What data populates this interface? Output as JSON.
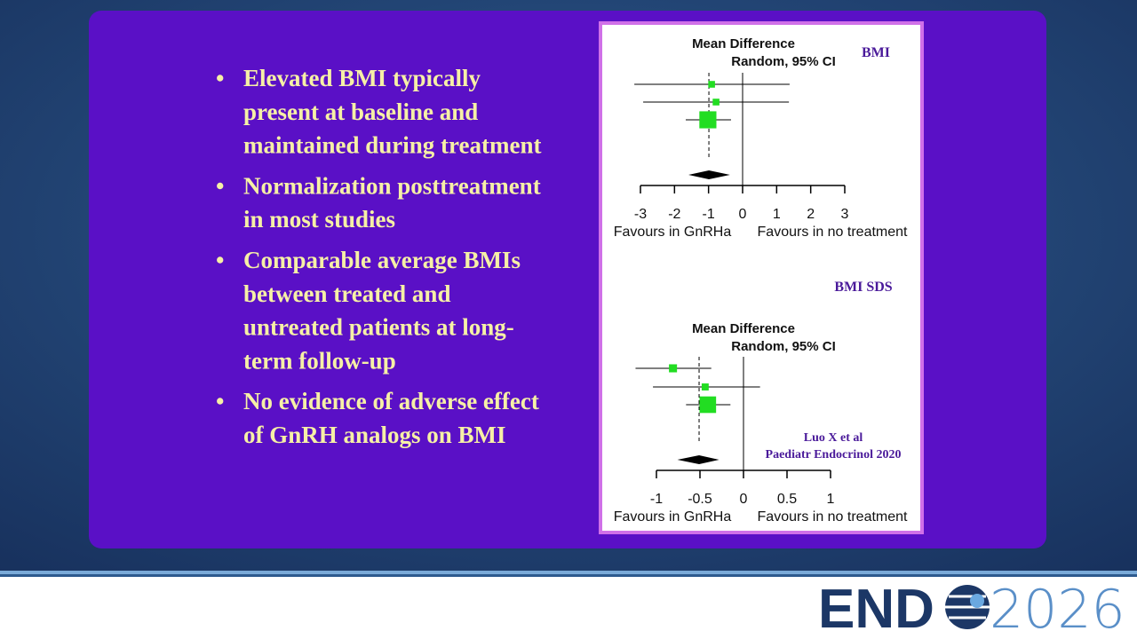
{
  "slide": {
    "bullets": [
      [
        "Elevated BMI typically",
        "present at baseline and",
        "maintained during treatment"
      ],
      [
        "Normalization posttreatment",
        "in most studies"
      ],
      [
        "Comparable average BMIs",
        "between treated and",
        "untreated patients at long-",
        "term follow-up"
      ],
      [
        "No evidence of adverse effect",
        "of GnRH analogs on BMI"
      ]
    ],
    "bullet_symbol": "•",
    "citation": [
      "Luo X et al",
      "Paediatr Endocrinol 2020"
    ],
    "logo": {
      "brand": "END",
      "year": "2026"
    }
  },
  "chart_data": [
    {
      "type": "forest",
      "title": "BMI",
      "header": [
        "Mean Difference",
        "Random, 95% CI"
      ],
      "values": [
        -0.91,
        -0.78,
        -1.02
      ],
      "lower": [
        -3.18,
        -2.92,
        -1.67
      ],
      "upper": [
        1.38,
        1.36,
        -0.34
      ],
      "weights": [
        5,
        5,
        90
      ],
      "overall": {
        "value": -0.99,
        "lower": -1.59,
        "upper": -0.37
      },
      "xlim": [
        -3,
        3
      ],
      "xticks": [
        -3,
        -2,
        -1,
        0,
        1,
        2,
        3
      ],
      "x_labels": [
        "Favours in GnRHa",
        "Favours in no treatment"
      ],
      "color": "#22dd22"
    },
    {
      "type": "forest",
      "title": "BMI SDS",
      "header": [
        "Mean Difference",
        "Random, 95% CI"
      ],
      "values": [
        -0.81,
        -0.44,
        -0.41
      ],
      "lower": [
        -1.24,
        -1.04,
        -0.66
      ],
      "upper": [
        -0.37,
        0.19,
        -0.15
      ],
      "weights": [
        10,
        6,
        84
      ],
      "overall": {
        "value": -0.51,
        "lower": -0.76,
        "upper": -0.28
      },
      "xlim": [
        -1,
        1
      ],
      "xticks": [
        -1,
        -0.5,
        0,
        0.5,
        1
      ],
      "x_labels": [
        "Favours in GnRHa",
        "Favours in no treatment"
      ],
      "color": "#22dd22"
    }
  ]
}
